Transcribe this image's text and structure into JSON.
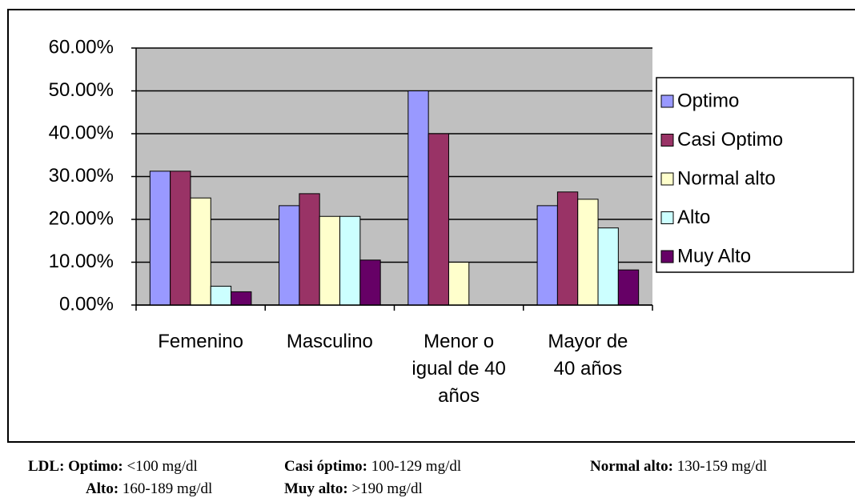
{
  "chart_data": {
    "type": "bar",
    "categories": [
      "Femenino",
      "Masculino",
      "Menor o igual de 40 años",
      "Mayor de 40 años"
    ],
    "series": [
      {
        "name": "Optimo",
        "color": "#9999ff",
        "values": [
          31.25,
          23.2,
          50,
          23.2
        ]
      },
      {
        "name": "Casi Optimo",
        "color": "#993366",
        "values": [
          31.25,
          26,
          40,
          26.4
        ]
      },
      {
        "name": "Normal alto",
        "color": "#ffffcc",
        "values": [
          25,
          20.7,
          10,
          24.7
        ]
      },
      {
        "name": "Alto",
        "color": "#ccffff",
        "values": [
          4.4,
          20.7,
          0,
          18
        ]
      },
      {
        "name": "Muy Alto",
        "color": "#660066",
        "values": [
          3.1,
          10.5,
          0,
          8.2
        ]
      }
    ],
    "ylim": [
      0,
      60
    ],
    "yticks": [
      {
        "value": 0,
        "label": "0.00%"
      },
      {
        "value": 10,
        "label": "10.00%"
      },
      {
        "value": 20,
        "label": "20.00%"
      },
      {
        "value": 30,
        "label": "30.00%"
      },
      {
        "value": 40,
        "label": "40.00%"
      },
      {
        "value": 50,
        "label": "50.00%"
      },
      {
        "value": 60,
        "label": "60.00%"
      }
    ],
    "grid": true,
    "legend": "right",
    "plot_background": "#c0c0c0"
  },
  "footnote": {
    "prefix": "LDL:",
    "items": [
      {
        "label": "Optimo:",
        "range": "<100 mg/dl"
      },
      {
        "label": "Casi óptimo:",
        "range": "100-129 mg/dl"
      },
      {
        "label": "Normal alto:",
        "range": "130-159 mg/dl"
      },
      {
        "label": "Alto:",
        "range": "160-189 mg/dl"
      },
      {
        "label": "Muy alto:",
        "range": ">190 mg/dl"
      }
    ]
  }
}
